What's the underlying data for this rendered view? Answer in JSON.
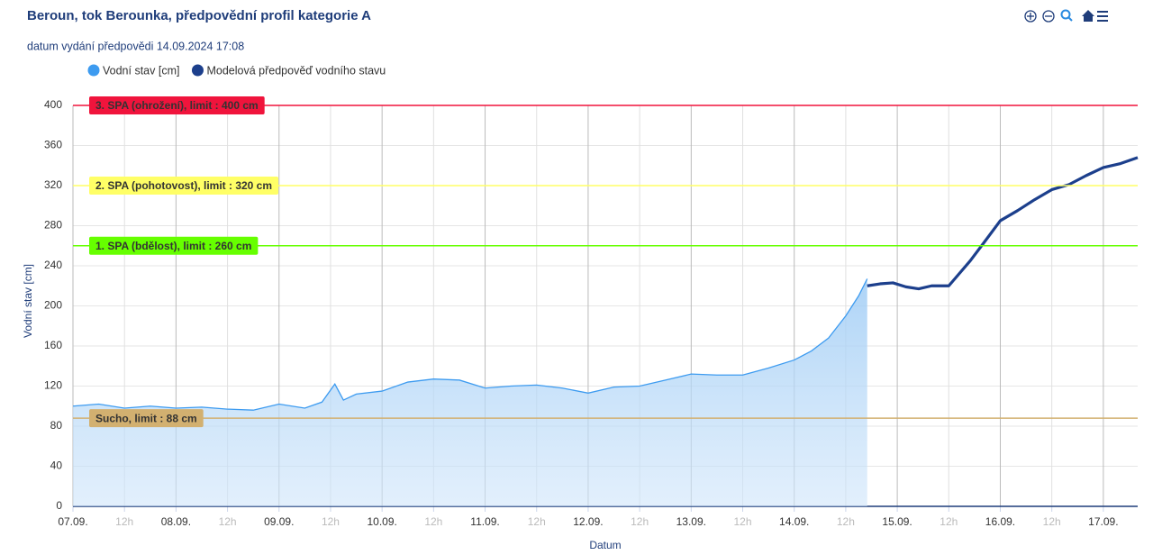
{
  "chart_data": {
    "type": "line",
    "title": "Beroun, tok Berounka, předpovědní profil kategorie A",
    "subtitle": "datum vydání předpovědi 14.09.2024 17:08",
    "y_label": "Vodní stav [cm]",
    "x_label": "Datum",
    "xlim": [
      0,
      248
    ],
    "ylim": [
      0,
      400
    ],
    "yticks": [
      0,
      40,
      80,
      120,
      160,
      200,
      240,
      280,
      320,
      360,
      400
    ],
    "xticks": [
      {
        "value": 0,
        "label": "07.09."
      },
      {
        "value": 12,
        "label": "12h"
      },
      {
        "value": 24,
        "label": "08.09."
      },
      {
        "value": 36,
        "label": "12h"
      },
      {
        "value": 48,
        "label": "09.09."
      },
      {
        "value": 60,
        "label": "12h"
      },
      {
        "value": 72,
        "label": "10.09."
      },
      {
        "value": 84,
        "label": "12h"
      },
      {
        "value": 96,
        "label": "11.09."
      },
      {
        "value": 108,
        "label": "12h"
      },
      {
        "value": 120,
        "label": "12.09."
      },
      {
        "value": 132,
        "label": "12h"
      },
      {
        "value": 144,
        "label": "13.09."
      },
      {
        "value": 156,
        "label": "12h"
      },
      {
        "value": 168,
        "label": "14.09."
      },
      {
        "value": 180,
        "label": "12h"
      },
      {
        "value": 192,
        "label": "15.09."
      },
      {
        "value": 204,
        "label": "12h"
      },
      {
        "value": 216,
        "label": "16.09."
      },
      {
        "value": 228,
        "label": "12h"
      },
      {
        "value": 240,
        "label": "17.09."
      }
    ],
    "grid": true,
    "series": [
      {
        "name": "Vodní stav [cm]",
        "color": "#3d9bf0",
        "kind": "area",
        "x": [
          0,
          6,
          12,
          18,
          24,
          30,
          36,
          42,
          48,
          54,
          58,
          61,
          63,
          66,
          72,
          78,
          84,
          90,
          96,
          102,
          108,
          114,
          120,
          126,
          132,
          138,
          144,
          150,
          156,
          162,
          168,
          172,
          176,
          180,
          183,
          185
        ],
        "values": [
          100,
          102,
          98,
          100,
          98,
          99,
          97,
          96,
          102,
          98,
          104,
          122,
          106,
          112,
          115,
          124,
          127,
          126,
          118,
          120,
          121,
          118,
          113,
          119,
          120,
          126,
          132,
          131,
          131,
          138,
          146,
          155,
          168,
          190,
          210,
          227
        ]
      },
      {
        "name": "Modelová předpověď vodního stavu",
        "color": "#1c3f8c",
        "kind": "line",
        "x": [
          185,
          188,
          191,
          194,
          197,
          200,
          204,
          206,
          209,
          212,
          216,
          220,
          224,
          228,
          232,
          236,
          240,
          244,
          248
        ],
        "values": [
          220,
          222,
          223,
          219,
          217,
          220,
          220,
          230,
          245,
          262,
          285,
          295,
          306,
          316,
          321,
          330,
          338,
          342,
          348
        ]
      }
    ],
    "thresholds": [
      {
        "label": "3. SPA (ohrožení), limit : 400 cm",
        "value": 400,
        "color": "#f0143c",
        "text_color": "#222"
      },
      {
        "label": "2. SPA (pohotovost), limit : 320 cm",
        "value": 320,
        "color": "#ffff66",
        "text_color": "#222"
      },
      {
        "label": "1. SPA (bdělost), limit : 260 cm",
        "value": 260,
        "color": "#66ff00",
        "text_color": "#222"
      },
      {
        "label": "Sucho, limit : 88 cm",
        "value": 88,
        "color": "#d2b070",
        "text_color": "#fff"
      }
    ]
  }
}
